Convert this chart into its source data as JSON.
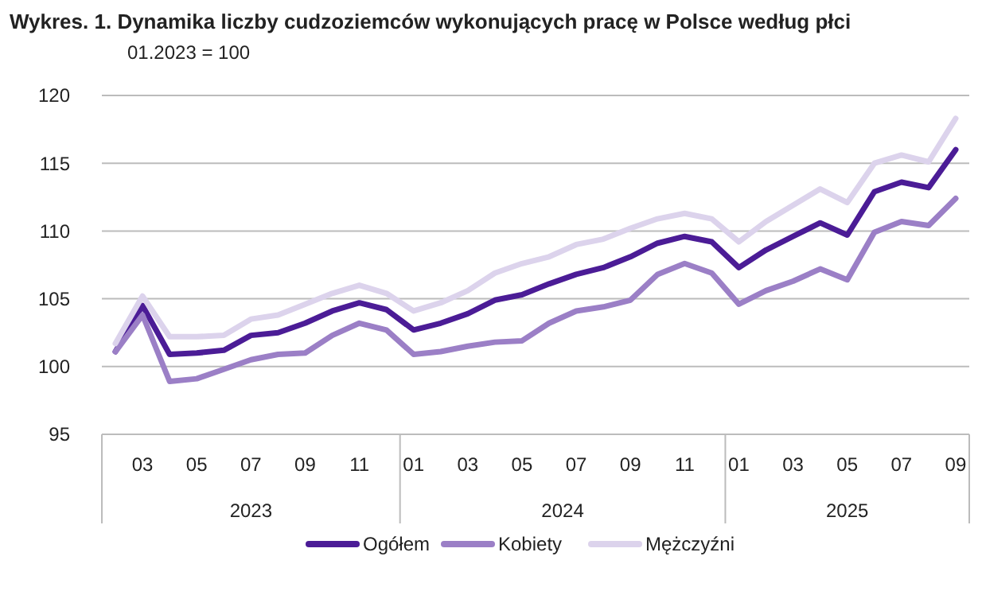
{
  "chart_data": {
    "type": "line",
    "title": "Wykres. 1. Dynamika liczby cudzoziemców wykonujących pracę w Polsce według płci",
    "subtitle": "01.2023 = 100",
    "categories": [
      null,
      "03",
      null,
      "05",
      null,
      "07",
      null,
      "09",
      null,
      "11",
      null,
      "01",
      null,
      "03",
      null,
      "05",
      null,
      "07",
      null,
      "09",
      null,
      "11",
      null,
      "01",
      null,
      "03",
      null,
      "05",
      null,
      "07",
      null,
      "09"
    ],
    "series": [
      {
        "name": "Ogółem",
        "color": "#4b1c96",
        "values": [
          101.1,
          104.5,
          100.9,
          101.0,
          101.2,
          102.3,
          102.5,
          103.2,
          104.1,
          104.7,
          104.2,
          102.7,
          103.2,
          103.9,
          104.9,
          105.3,
          106.1,
          106.8,
          107.3,
          108.1,
          109.1,
          109.6,
          109.2,
          107.3,
          108.6,
          109.6,
          110.6,
          109.7,
          112.9,
          113.6,
          113.2,
          116.0
        ]
      },
      {
        "name": "Kobiety",
        "color": "#9b7fc6",
        "values": [
          101.1,
          103.8,
          98.9,
          99.1,
          99.8,
          100.5,
          100.9,
          101.0,
          102.3,
          103.2,
          102.7,
          100.9,
          101.1,
          101.5,
          101.8,
          101.9,
          103.2,
          104.1,
          104.4,
          104.9,
          106.8,
          107.6,
          106.9,
          104.6,
          105.6,
          106.3,
          107.2,
          106.4,
          109.9,
          110.7,
          110.4,
          112.4
        ]
      },
      {
        "name": "Mężczyźni",
        "color": "#dcd3ec",
        "values": [
          101.7,
          105.2,
          102.2,
          102.2,
          102.3,
          103.5,
          103.8,
          104.6,
          105.4,
          106.0,
          105.4,
          104.1,
          104.7,
          105.6,
          106.9,
          107.6,
          108.1,
          109.0,
          109.4,
          110.2,
          110.9,
          111.3,
          110.9,
          109.2,
          110.7,
          111.9,
          113.1,
          112.1,
          115.0,
          115.6,
          115.1,
          118.3
        ]
      }
    ],
    "annotations": [
      "2023",
      "2024",
      "2025"
    ],
    "ylim": [
      95,
      120
    ],
    "yticks": [
      95,
      100,
      105,
      110,
      115,
      120
    ],
    "grid": "y",
    "legend": "bottom",
    "line_style": "solid",
    "marker": "none"
  }
}
